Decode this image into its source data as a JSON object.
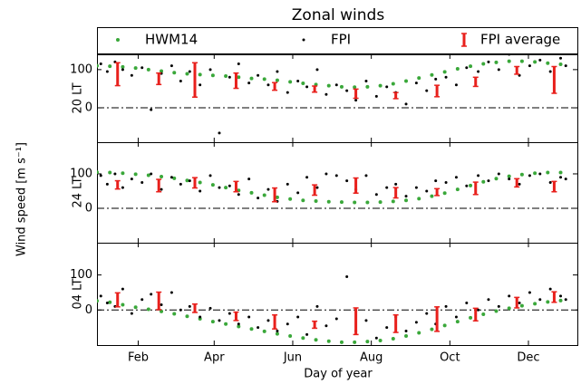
{
  "figure": {
    "title": "Zonal winds",
    "xlabel": "Day of year",
    "ylabel": "Wind speed [m s⁻¹]",
    "xlim": [
      0,
      373
    ],
    "xticks": [
      {
        "value": 32,
        "label": "Feb"
      },
      {
        "value": 91,
        "label": "Apr"
      },
      {
        "value": 152,
        "label": "Jun"
      },
      {
        "value": 213,
        "label": "Aug"
      },
      {
        "value": 274,
        "label": "Oct"
      },
      {
        "value": 335,
        "label": "Dec"
      }
    ]
  },
  "chart_data": [
    {
      "type": "scatter",
      "ylabel": "20 LT",
      "ylim": [
        -90,
        140
      ],
      "yticks": [
        0,
        100
      ],
      "series": [
        {
          "name": "HWM14",
          "color": "#3aa83a",
          "x": [
            0,
            10,
            20,
            30,
            40,
            50,
            60,
            70,
            80,
            90,
            100,
            110,
            120,
            130,
            140,
            150,
            160,
            170,
            180,
            190,
            200,
            210,
            220,
            230,
            240,
            250,
            260,
            270,
            280,
            290,
            300,
            310,
            320,
            330,
            340,
            350,
            360
          ],
          "values": [
            110,
            109,
            107,
            104,
            100,
            96,
            92,
            89,
            87,
            85,
            83,
            80,
            77,
            75,
            72,
            68,
            64,
            61,
            58,
            55,
            54,
            55,
            58,
            63,
            70,
            78,
            86,
            94,
            102,
            109,
            115,
            119,
            122,
            122,
            120,
            117,
            114
          ]
        },
        {
          "name": "FPI",
          "color": "#000000",
          "x": [
            3,
            8,
            14,
            20,
            27,
            35,
            42,
            50,
            58,
            65,
            72,
            80,
            88,
            95,
            103,
            110,
            118,
            125,
            133,
            140,
            148,
            156,
            163,
            171,
            178,
            186,
            194,
            201,
            209,
            217,
            225,
            232,
            240,
            248,
            256,
            263,
            271,
            279,
            287,
            296,
            304,
            312,
            320,
            328,
            336,
            344,
            352,
            360,
            364
          ],
          "values": [
            115,
            95,
            120,
            100,
            85,
            105,
            -5,
            90,
            110,
            70,
            95,
            60,
            100,
            -66,
            80,
            115,
            65,
            85,
            60,
            95,
            40,
            70,
            55,
            100,
            35,
            60,
            45,
            20,
            70,
            30,
            55,
            40,
            10,
            65,
            45,
            75,
            80,
            60,
            105,
            95,
            120,
            100,
            140,
            85,
            110,
            125,
            95,
            130,
            110
          ]
        },
        {
          "name": "FPI average",
          "color": "#e8201c",
          "x": [
            16,
            48,
            76,
            108,
            138,
            169,
            201,
            232,
            264,
            294,
            326,
            355
          ],
          "values": [
            88,
            76,
            73,
            71,
            56,
            49,
            37,
            32,
            44,
            68,
            98,
            73
          ],
          "errors": [
            30,
            15,
            45,
            20,
            10,
            8,
            12,
            8,
            15,
            12,
            10,
            35
          ]
        }
      ]
    },
    {
      "type": "scatter",
      "ylabel": "24 LT",
      "ylim": [
        -100,
        192
      ],
      "yticks": [
        0,
        100
      ],
      "series": [
        {
          "name": "HWM14",
          "color": "#3aa83a",
          "x": [
            0,
            10,
            20,
            30,
            40,
            50,
            60,
            70,
            80,
            90,
            100,
            110,
            120,
            130,
            140,
            150,
            160,
            170,
            180,
            190,
            200,
            210,
            220,
            230,
            240,
            250,
            260,
            270,
            280,
            290,
            300,
            310,
            320,
            330,
            340,
            350,
            360
          ],
          "values": [
            105,
            104,
            102,
            99,
            96,
            92,
            87,
            81,
            75,
            68,
            60,
            52,
            45,
            38,
            32,
            27,
            23,
            21,
            19,
            18,
            17,
            17,
            18,
            20,
            23,
            28,
            35,
            44,
            55,
            66,
            77,
            86,
            93,
            98,
            102,
            104,
            104
          ]
        },
        {
          "name": "FPI",
          "color": "#000000",
          "x": [
            3,
            8,
            14,
            20,
            27,
            35,
            42,
            50,
            58,
            65,
            72,
            80,
            88,
            95,
            103,
            110,
            118,
            125,
            133,
            140,
            148,
            156,
            163,
            171,
            178,
            186,
            194,
            201,
            209,
            217,
            225,
            232,
            240,
            248,
            256,
            263,
            271,
            279,
            287,
            296,
            304,
            312,
            320,
            328,
            336,
            344,
            352,
            360,
            364
          ],
          "values": [
            95,
            70,
            100,
            60,
            85,
            75,
            100,
            55,
            90,
            70,
            80,
            50,
            95,
            60,
            65,
            40,
            85,
            30,
            55,
            20,
            70,
            45,
            90,
            60,
            100,
            95,
            80,
            55,
            95,
            40,
            60,
            70,
            35,
            60,
            50,
            80,
            75,
            90,
            65,
            95,
            80,
            100,
            85,
            70,
            95,
            100,
            75,
            90,
            85
          ]
        },
        {
          "name": "FPI average",
          "color": "#e8201c",
          "x": [
            16,
            48,
            76,
            108,
            138,
            169,
            201,
            232,
            264,
            294,
            326,
            355
          ],
          "values": [
            68,
            66,
            74,
            63,
            39,
            53,
            66,
            45,
            47,
            58,
            74,
            63
          ],
          "errors": [
            12,
            18,
            15,
            15,
            20,
            15,
            22,
            15,
            10,
            18,
            12,
            15
          ]
        }
      ]
    },
    {
      "type": "scatter",
      "ylabel": "04 LT",
      "ylim": [
        -100,
        192
      ],
      "yticks": [
        0,
        100
      ],
      "series": [
        {
          "name": "HWM14",
          "color": "#3aa83a",
          "x": [
            0,
            10,
            20,
            30,
            40,
            50,
            60,
            70,
            80,
            90,
            100,
            110,
            120,
            130,
            140,
            150,
            160,
            170,
            180,
            190,
            200,
            210,
            220,
            230,
            240,
            250,
            260,
            270,
            280,
            290,
            300,
            310,
            320,
            330,
            340,
            350,
            360
          ],
          "values": [
            26,
            22,
            15,
            8,
            2,
            -4,
            -11,
            -18,
            -25,
            -33,
            -40,
            -47,
            -54,
            -61,
            -68,
            -74,
            -80,
            -85,
            -89,
            -92,
            -92,
            -90,
            -87,
            -82,
            -74,
            -65,
            -55,
            -44,
            -33,
            -22,
            -12,
            -3,
            5,
            12,
            18,
            23,
            27
          ]
        },
        {
          "name": "FPI",
          "color": "#000000",
          "x": [
            3,
            8,
            14,
            20,
            27,
            35,
            42,
            50,
            58,
            65,
            72,
            80,
            88,
            95,
            103,
            110,
            118,
            125,
            133,
            140,
            148,
            156,
            163,
            171,
            178,
            186,
            194,
            201,
            209,
            217,
            225,
            232,
            240,
            248,
            256,
            263,
            271,
            279,
            287,
            296,
            304,
            312,
            320,
            328,
            336,
            344,
            352,
            360,
            364
          ],
          "values": [
            40,
            20,
            10,
            60,
            -10,
            30,
            45,
            15,
            50,
            0,
            10,
            -20,
            5,
            -30,
            -10,
            -40,
            -20,
            -50,
            -30,
            -60,
            -40,
            -20,
            -70,
            10,
            -45,
            -25,
            95,
            -60,
            -30,
            -80,
            -50,
            -20,
            -60,
            -35,
            -10,
            -40,
            10,
            -20,
            20,
            0,
            30,
            10,
            40,
            20,
            50,
            30,
            60,
            40,
            30
          ]
        },
        {
          "name": "FPI average",
          "color": "#e8201c",
          "x": [
            16,
            48,
            76,
            108,
            138,
            169,
            201,
            232,
            264,
            294,
            326,
            355
          ],
          "values": [
            29,
            26,
            5,
            -18,
            -34,
            -42,
            -32,
            -39,
            -26,
            -13,
            21,
            37
          ],
          "errors": [
            20,
            25,
            12,
            12,
            20,
            10,
            38,
            25,
            35,
            18,
            15,
            15
          ]
        }
      ]
    }
  ]
}
